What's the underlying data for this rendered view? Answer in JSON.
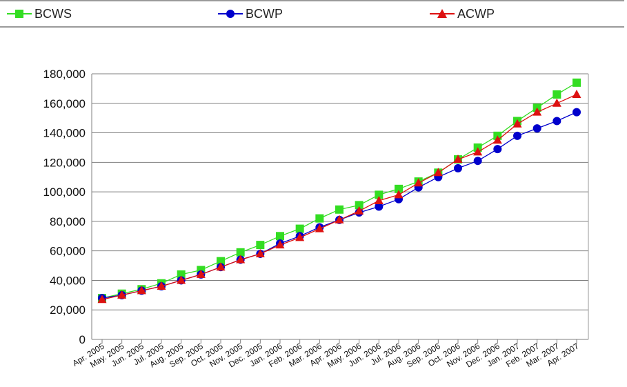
{
  "chart_data": {
    "type": "line",
    "title": "",
    "xlabel": "",
    "ylabel": "",
    "categories": [
      "Apr. 2005",
      "May. 2005",
      "Jun. 2005",
      "Jul. 2005",
      "Aug. 2005",
      "Sep. 2005",
      "Oct. 2005",
      "Nov. 2005",
      "Dec. 2005",
      "Jan. 2006",
      "Feb. 2006",
      "Mar. 2006",
      "Apr. 2006",
      "May. 2006",
      "Jun. 2006",
      "Jul. 2006",
      "Aug. 2006",
      "Sep. 2006",
      "Oct. 2006",
      "Nov. 2006",
      "Dec. 2006",
      "Jan. 2007",
      "Feb. 2007",
      "Mar. 2007",
      "Apr. 2007"
    ],
    "ylim": [
      0,
      180000
    ],
    "yticks": [
      0,
      20000,
      40000,
      60000,
      80000,
      100000,
      120000,
      140000,
      160000,
      180000
    ],
    "ytick_labels": [
      "0",
      "20,000",
      "40,000",
      "60,000",
      "80,000",
      "100,000",
      "120,000",
      "140,000",
      "160,000",
      "180,000"
    ],
    "grid": true,
    "legend_position": "top",
    "series": [
      {
        "name": "BCWS",
        "color": "#33dd22",
        "marker": "square",
        "values": [
          28000,
          31000,
          34000,
          38000,
          44000,
          47000,
          53000,
          59000,
          64000,
          70000,
          75000,
          82000,
          88000,
          91000,
          98000,
          102000,
          107000,
          113000,
          122000,
          130000,
          138000,
          148000,
          157000,
          166000,
          174000
        ]
      },
      {
        "name": "BCWP",
        "color": "#0000cc",
        "marker": "circle",
        "values": [
          28000,
          30000,
          33000,
          36000,
          40000,
          44000,
          49000,
          54000,
          58000,
          65000,
          70000,
          76000,
          81000,
          86000,
          90000,
          95000,
          103000,
          110000,
          116000,
          121000,
          129000,
          138000,
          143000,
          148000,
          154000
        ]
      },
      {
        "name": "ACWP",
        "color": "#dd1111",
        "marker": "triangle",
        "values": [
          27000,
          30000,
          33000,
          36000,
          40000,
          44000,
          49000,
          54000,
          58000,
          64000,
          69000,
          75000,
          81000,
          87000,
          94000,
          98000,
          106000,
          113000,
          122000,
          127000,
          135000,
          146000,
          154000,
          160000,
          166000
        ]
      }
    ]
  }
}
